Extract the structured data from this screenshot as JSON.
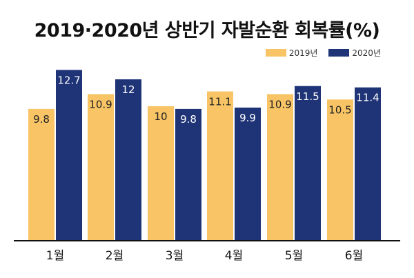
{
  "chart_data": {
    "type": "bar",
    "title": "2019·2020년 상반기 자발순환 회복률(%)",
    "categories": [
      "1월",
      "2월",
      "3월",
      "4월",
      "5월",
      "6월"
    ],
    "series": [
      {
        "name": "2019년",
        "values": [
          9.8,
          10.9,
          10,
          11.1,
          10.9,
          10.5
        ],
        "color": "#f8c466"
      },
      {
        "name": "2020년",
        "values": [
          12.7,
          12,
          9.8,
          9.9,
          11.5,
          11.4
        ],
        "color": "#1f3477"
      }
    ],
    "value_labels": [
      [
        "9.8",
        "10.9",
        "10",
        "11.1",
        "10.9",
        "10.5"
      ],
      [
        "12.7",
        "12",
        "9.8",
        "9.9",
        "11.5",
        "11.4"
      ]
    ],
    "grid": false,
    "legend": "top-right"
  }
}
